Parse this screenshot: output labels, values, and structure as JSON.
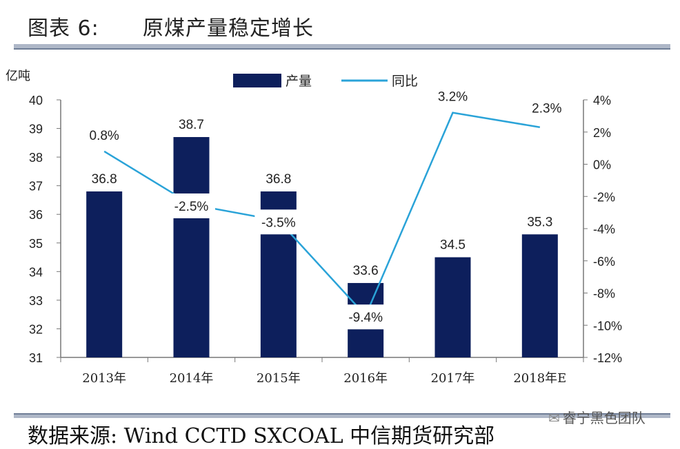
{
  "figure": {
    "title": "图表 6:      原煤产量稳定增长",
    "source": "数据来源: Wind CCTD SXCOAL 中信期货研究部",
    "watermark": "睿宁黑色团队",
    "watermark_icon": "wechat-icon"
  },
  "chart_data": {
    "type": "bar+line",
    "categories": [
      "2013年",
      "2014年",
      "2015年",
      "2016年",
      "2017年",
      "2018年E"
    ],
    "series": [
      {
        "name": "产量",
        "type": "bar",
        "axis": "left",
        "values": [
          36.8,
          38.7,
          36.8,
          33.6,
          34.5,
          35.3
        ],
        "color": "#0d1f5c"
      },
      {
        "name": "同比",
        "type": "line",
        "axis": "right",
        "values": [
          0.8,
          -2.5,
          -3.5,
          -9.4,
          3.2,
          2.3
        ],
        "color": "#2aa3d8"
      }
    ],
    "data_labels": {
      "bar": [
        "36.8",
        "38.7",
        "36.8",
        "33.6",
        "34.5",
        "35.3"
      ],
      "line": [
        "0.8%",
        "-2.5%",
        "-3.5%",
        "-9.4%",
        "3.2%",
        "2.3%"
      ]
    },
    "y_left": {
      "label": "亿吨",
      "min": 31,
      "max": 40,
      "ticks": [
        "31",
        "32",
        "33",
        "34",
        "35",
        "36",
        "37",
        "38",
        "39",
        "40"
      ]
    },
    "y_right": {
      "label": "",
      "min": -12,
      "max": 4,
      "ticks": [
        "-12%",
        "-10%",
        "-8%",
        "-6%",
        "-4%",
        "-2%",
        "0%",
        "2%",
        "4%"
      ]
    },
    "legend": {
      "position": "top-center",
      "entries": [
        "产量",
        "同比"
      ]
    },
    "grid": false
  }
}
